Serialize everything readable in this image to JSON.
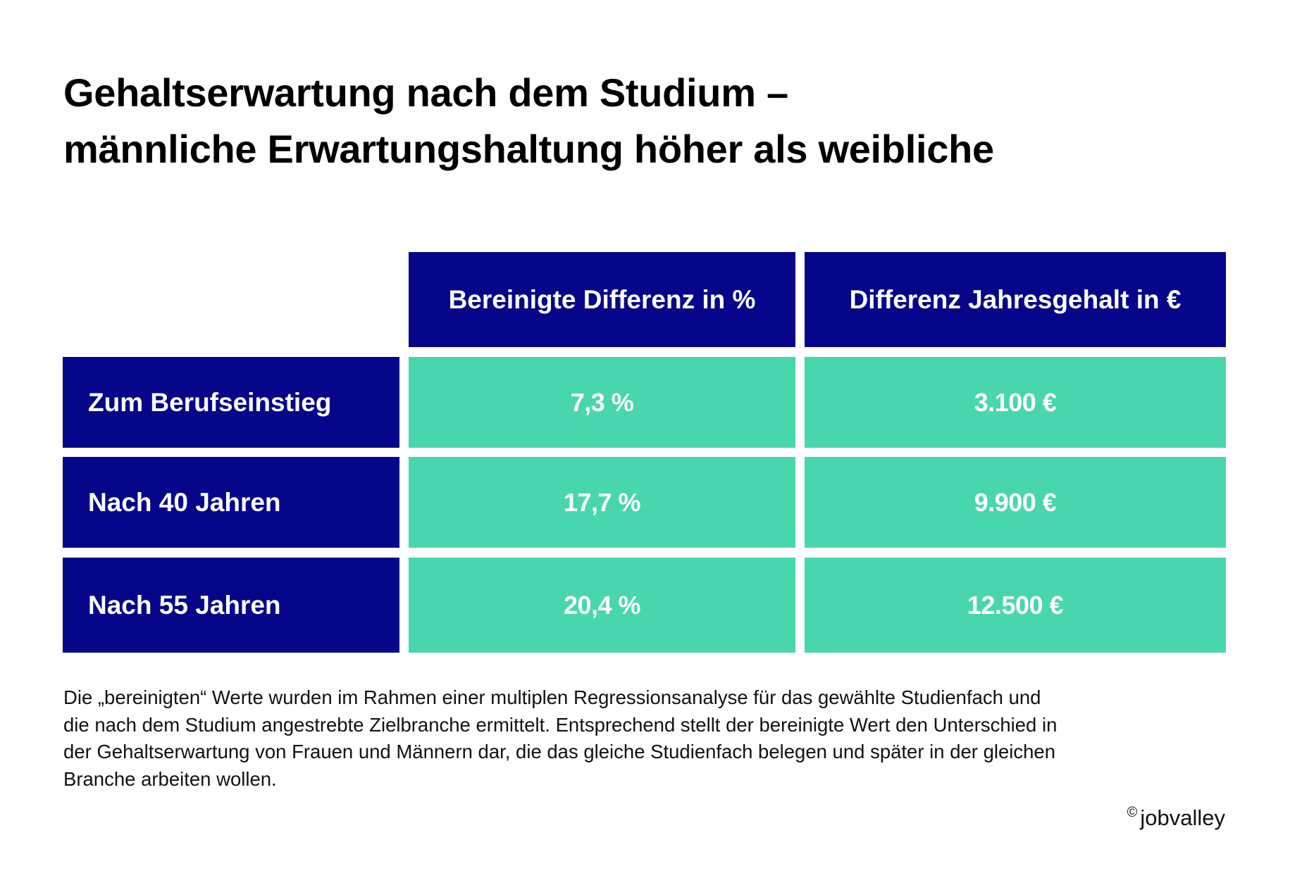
{
  "title": {
    "line1": "Gehaltserwartung nach dem Studium –",
    "line2": "männliche Erwartungshaltung höher als weibliche"
  },
  "colors": {
    "header_bg": "#06068A",
    "value_bg": "#48D7AC",
    "text_on_cells": "#FFFFFF"
  },
  "table": {
    "columns": [
      "Bereinigte Differenz in %",
      "Differenz Jahresgehalt in €"
    ],
    "rows": [
      {
        "label": "Zum Berufseinstieg",
        "percent": "7,3 %",
        "euro": "3.100 €"
      },
      {
        "label": "Nach 40 Jahren",
        "percent": "17,7 %",
        "euro": "9.900 €"
      },
      {
        "label": "Nach 55 Jahren",
        "percent": "20,4 %",
        "euro": "12.500 €"
      }
    ]
  },
  "footnote": {
    "lines": [
      "Die „bereinigten“ Werte wurden im Rahmen einer multiplen Regressionsanalyse für das gewählte Studienfach und",
      "die nach dem Studium angestrebte Zielbranche ermittelt. Entsprechend stellt der bereinigte Wert den Unterschied in",
      "der Gehaltserwartung von Frauen und Männern dar, die das gleiche Studienfach belegen und später in der gleichen",
      "Branche arbeiten wollen."
    ]
  },
  "credit": {
    "symbol": "©",
    "brand": "jobvalley"
  }
}
